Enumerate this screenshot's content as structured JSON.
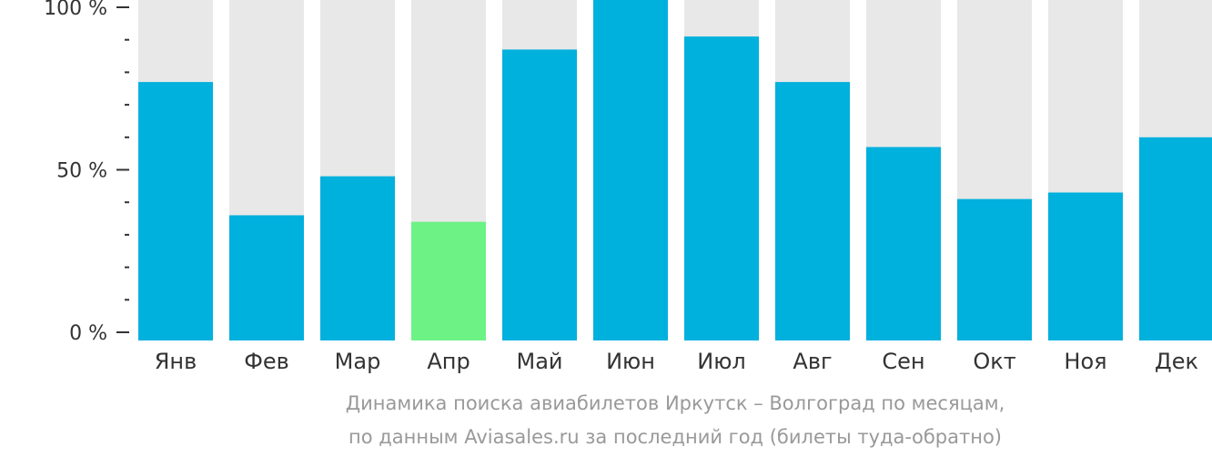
{
  "chart_data": {
    "type": "bar",
    "categories": [
      "Янв",
      "Фев",
      "Мар",
      "Апр",
      "Май",
      "Июн",
      "Июл",
      "Авг",
      "Сен",
      "Окт",
      "Ноя",
      "Дек"
    ],
    "values": [
      77,
      36,
      48,
      34,
      87,
      104,
      91,
      77,
      57,
      41,
      43,
      60
    ],
    "highlight_index": 3,
    "y_ticks": [
      {
        "value": 0,
        "label": "0 %"
      },
      {
        "value": 50,
        "label": "50 %"
      },
      {
        "value": 100,
        "label": "100 %"
      }
    ],
    "ylim": [
      0,
      104
    ],
    "minor_tick_step": 10,
    "grid": false,
    "caption": [
      "Динамика поиска авиабилетов Иркутск – Волгоград по месяцам,",
      "по данным Aviasales.ru за последний год (билеты туда-обратно)"
    ],
    "colors": {
      "bar": "#00b0dd",
      "highlight": "#6df285",
      "background_bar": "#e8e8e8",
      "axis": "#333333",
      "caption": "#999999"
    }
  }
}
